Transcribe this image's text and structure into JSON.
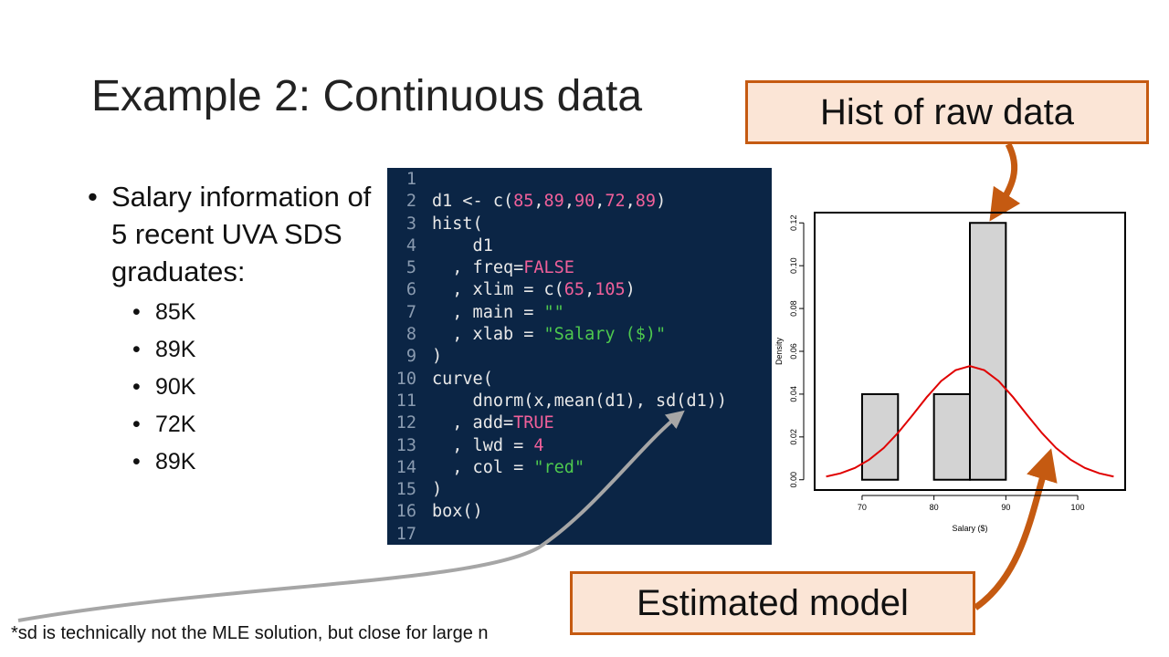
{
  "title": "Example 2: Continuous data",
  "bullet": {
    "text": "Salary information of 5 recent UVA SDS graduates:",
    "items": [
      "85K",
      "89K",
      "90K",
      "72K",
      "89K"
    ]
  },
  "code": {
    "line_numbers": [
      1,
      2,
      3,
      4,
      5,
      6,
      7,
      8,
      9,
      10,
      11,
      12,
      13,
      14,
      15,
      16,
      17
    ],
    "lines": [
      [],
      [
        {
          "text": "d1 <- c("
        },
        {
          "text": "85",
          "color": "#f0609a"
        },
        {
          "text": ","
        },
        {
          "text": "89",
          "color": "#f0609a"
        },
        {
          "text": ","
        },
        {
          "text": "90",
          "color": "#f0609a"
        },
        {
          "text": ","
        },
        {
          "text": "72",
          "color": "#f0609a"
        },
        {
          "text": ","
        },
        {
          "text": "89",
          "color": "#f0609a"
        },
        {
          "text": ")"
        }
      ],
      [
        {
          "text": "hist("
        }
      ],
      [
        {
          "text": "    d1"
        }
      ],
      [
        {
          "text": "  , freq="
        },
        {
          "text": "FALSE",
          "color": "#f0609a"
        }
      ],
      [
        {
          "text": "  , xlim = c("
        },
        {
          "text": "65",
          "color": "#f0609a"
        },
        {
          "text": ","
        },
        {
          "text": "105",
          "color": "#f0609a"
        },
        {
          "text": ")"
        }
      ],
      [
        {
          "text": "  , main = "
        },
        {
          "text": "\"\"",
          "color": "#4ec94e"
        }
      ],
      [
        {
          "text": "  , xlab = "
        },
        {
          "text": "\"Salary ($)\"",
          "color": "#4ec94e"
        }
      ],
      [
        {
          "text": ")"
        }
      ],
      [
        {
          "text": "curve("
        }
      ],
      [
        {
          "text": "    dnorm(x,mean(d1), sd(d1))"
        }
      ],
      [
        {
          "text": "  , add="
        },
        {
          "text": "TRUE",
          "color": "#f0609a"
        }
      ],
      [
        {
          "text": "  , lwd = "
        },
        {
          "text": "4",
          "color": "#f0609a"
        }
      ],
      [
        {
          "text": "  , col = "
        },
        {
          "text": "\"red\"",
          "color": "#4ec94e"
        }
      ],
      [
        {
          "text": ")"
        }
      ],
      [
        {
          "text": "box()"
        }
      ],
      []
    ]
  },
  "callouts": [
    "Hist of raw data",
    "Estimated model"
  ],
  "footnote": "*sd is technically not the MLE solution, but close for large n",
  "chart_data": {
    "type": "histogram",
    "x_label": "Salary ($)",
    "y_label": "Density",
    "bins": [
      70,
      75,
      80,
      85,
      90
    ],
    "values": [
      0.04,
      0,
      0.04,
      0.12
    ],
    "color": "#d3d3d3",
    "xlim": [
      63.4,
      106.6
    ],
    "ylim": [
      -0.0048,
      0.1248
    ],
    "xticks": [
      70,
      80,
      90,
      100
    ],
    "yticks": [
      {
        "value": 0,
        "label": "0.00"
      },
      {
        "value": 0.02,
        "label": "0.02"
      },
      {
        "value": 0.04,
        "label": "0.04"
      },
      {
        "value": 0.06,
        "label": "0.06"
      },
      {
        "value": 0.08,
        "label": "0.08"
      },
      {
        "value": 0.1,
        "label": "0.10"
      },
      {
        "value": 0.12,
        "label": "0.12"
      }
    ],
    "curve": {
      "color": "#e00000",
      "x": [
        65,
        67,
        69,
        71,
        73,
        75,
        77,
        79,
        81,
        83,
        85,
        87,
        89,
        91,
        93,
        95,
        97,
        99,
        101,
        103,
        105
      ],
      "values": [
        0.0015,
        0.003,
        0.0055,
        0.0094,
        0.0148,
        0.0219,
        0.0301,
        0.0386,
        0.0461,
        0.0512,
        0.0531,
        0.0512,
        0.0461,
        0.0386,
        0.0301,
        0.0219,
        0.0148,
        0.0094,
        0.0055,
        0.003,
        0.0015
      ]
    }
  }
}
